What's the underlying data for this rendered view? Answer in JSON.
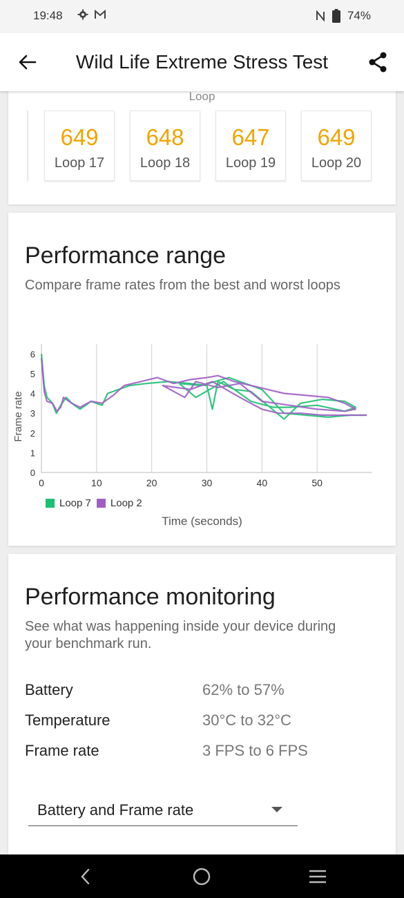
{
  "status": {
    "time": "19:48",
    "battery": "74%"
  },
  "appbar": {
    "title": "Wild Life Extreme Stress Test"
  },
  "loops": {
    "section_label": "Loop",
    "tiles": [
      {
        "score": "649",
        "name": "Loop 17"
      },
      {
        "score": "648",
        "name": "Loop 18"
      },
      {
        "score": "647",
        "name": "Loop 19"
      },
      {
        "score": "649",
        "name": "Loop 20"
      }
    ],
    "accent_color": "#f0a500"
  },
  "range": {
    "title": "Performance range",
    "subtitle": "Compare frame rates from the best and worst loops"
  },
  "chart_data": {
    "type": "line",
    "xlabel": "Time (seconds)",
    "ylabel": "Frame rate",
    "xlim": [
      0,
      60
    ],
    "ylim": [
      0,
      6.5
    ],
    "x_ticks": [
      "0",
      "10",
      "20",
      "30",
      "40",
      "50"
    ],
    "y_ticks": [
      "0",
      "1",
      "2",
      "3",
      "4",
      "5",
      "6"
    ],
    "grid": "vertical",
    "legend": "bottom-left",
    "series": [
      {
        "name": "Loop 7",
        "color": "#1dbf73",
        "values": [
          [
            0,
            6
          ],
          [
            0.5,
            4.4
          ],
          [
            1,
            3.8
          ],
          [
            2,
            3.5
          ],
          [
            2.7,
            3
          ],
          [
            3.5,
            3.4
          ],
          [
            4.5,
            3.8
          ],
          [
            5.5,
            3.5
          ],
          [
            7,
            3.2
          ],
          [
            9,
            3.6
          ],
          [
            11,
            3.4
          ],
          [
            12,
            4
          ],
          [
            14,
            4.2
          ],
          [
            16,
            4.4
          ],
          [
            19,
            4.5
          ],
          [
            23,
            4.6
          ],
          [
            27,
            4.5
          ],
          [
            30,
            4.4
          ],
          [
            31,
            3.2
          ],
          [
            32,
            4.6
          ],
          [
            35,
            4.2
          ],
          [
            38,
            4.1
          ],
          [
            41,
            3.4
          ],
          [
            44,
            2.7
          ],
          [
            47,
            3.5
          ],
          [
            51,
            3.7
          ],
          [
            55,
            3.6
          ],
          [
            57,
            3.3
          ],
          [
            55,
            3.1
          ],
          [
            50,
            3.4
          ],
          [
            45,
            3.3
          ],
          [
            42,
            3.3
          ],
          [
            38,
            3.6
          ],
          [
            33,
            4.6
          ],
          [
            28,
            3.8
          ],
          [
            25,
            4.5
          ],
          [
            29,
            4.4
          ],
          [
            34,
            4.8
          ],
          [
            40,
            4.2
          ],
          [
            44,
            3
          ],
          [
            48,
            2.9
          ],
          [
            52,
            2.8
          ],
          [
            56,
            2.9
          ],
          [
            59,
            2.9
          ]
        ]
      },
      {
        "name": "Loop 2",
        "color": "#a05ec4",
        "values": [
          [
            0,
            5.8
          ],
          [
            0.5,
            4.1
          ],
          [
            1,
            3.6
          ],
          [
            2,
            3.5
          ],
          [
            2.8,
            3.1
          ],
          [
            3.5,
            3.3
          ],
          [
            4,
            3.8
          ],
          [
            5.5,
            3.5
          ],
          [
            7,
            3.3
          ],
          [
            9,
            3.6
          ],
          [
            11,
            3.5
          ],
          [
            13,
            3.9
          ],
          [
            15,
            4.4
          ],
          [
            18,
            4.6
          ],
          [
            21,
            4.8
          ],
          [
            24,
            4.5
          ],
          [
            27,
            4.7
          ],
          [
            30,
            4.8
          ],
          [
            32,
            4.9
          ],
          [
            35,
            4.6
          ],
          [
            38,
            4.4
          ],
          [
            41,
            4.2
          ],
          [
            44,
            4
          ],
          [
            48,
            3.9
          ],
          [
            52,
            3.8
          ],
          [
            55,
            3.5
          ],
          [
            57,
            3.2
          ],
          [
            55,
            3.1
          ],
          [
            50,
            3.2
          ],
          [
            45,
            3.4
          ],
          [
            40,
            3.6
          ],
          [
            36,
            4.5
          ],
          [
            32,
            4.3
          ],
          [
            28,
            4.6
          ],
          [
            26,
            3.8
          ],
          [
            22,
            4.4
          ],
          [
            27,
            4.2
          ],
          [
            31,
            4.6
          ],
          [
            36,
            3.8
          ],
          [
            40,
            3.2
          ],
          [
            43,
            3
          ],
          [
            47,
            3
          ],
          [
            51,
            2.9
          ],
          [
            56,
            2.9
          ],
          [
            59,
            2.9
          ]
        ]
      }
    ]
  },
  "monitor": {
    "title": "Performance monitoring",
    "subtitle_line1": "See what was happening inside your device during",
    "subtitle_line2": "your benchmark run.",
    "rows": [
      {
        "label": "Battery",
        "value": "62% to 57%"
      },
      {
        "label": "Temperature",
        "value": "30°C to 32°C"
      },
      {
        "label": "Frame rate",
        "value": "3 FPS to 6 FPS"
      }
    ],
    "select_value": "Battery and Frame rate"
  }
}
